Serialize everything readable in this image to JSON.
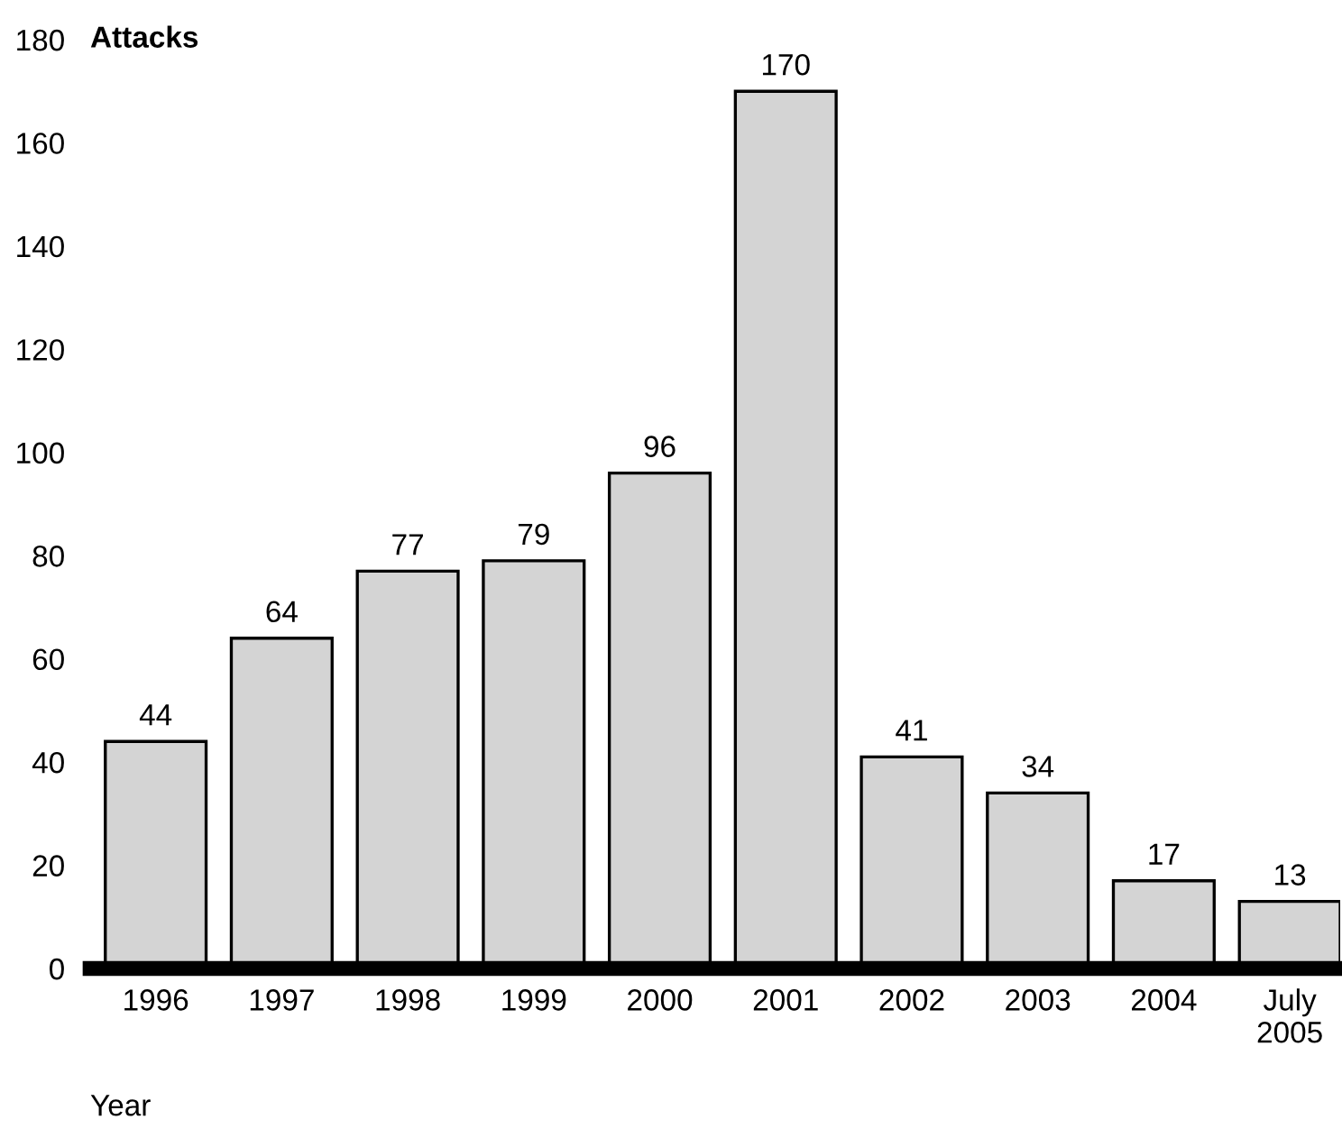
{
  "chart_data": {
    "type": "bar",
    "ylabel": "Attacks",
    "xlabel": "Year",
    "categories": [
      "1996",
      "1997",
      "1998",
      "1999",
      "2000",
      "2001",
      "2002",
      "2003",
      "2004",
      "July\n2005"
    ],
    "values": [
      44,
      64,
      77,
      79,
      96,
      170,
      41,
      34,
      17,
      13
    ],
    "color": "#d4d4d4",
    "ylim": [
      0,
      180
    ],
    "yticks": [
      0,
      20,
      40,
      60,
      80,
      100,
      120,
      140,
      160,
      180
    ],
    "data_labels": true,
    "grid": false,
    "legend": false
  }
}
